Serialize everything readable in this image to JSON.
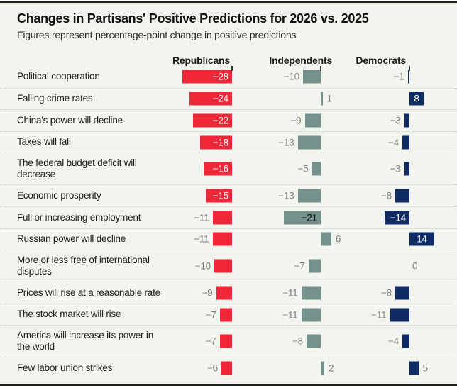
{
  "title": "Changes in Partisans' Positive Predictions for 2026 vs. 2025",
  "subtitle": "Figures represent percentage-point change in positive predictions",
  "columns": [
    {
      "key": "rep",
      "label": "Republicans",
      "color": "#f0283a",
      "inside_text_color": "#ffffff"
    },
    {
      "key": "ind",
      "label": "Independents",
      "color": "#75918b",
      "inside_text_color": "#161616"
    },
    {
      "key": "dem",
      "label": "Democrats",
      "color": "#0f2a64",
      "inside_text_color": "#ffffff"
    }
  ],
  "chart_data": {
    "type": "bar",
    "orientation": "horizontal",
    "title": "Changes in Partisans' Positive Predictions for 2026 vs. 2025",
    "subtitle": "Figures represent percentage-point change in positive predictions",
    "unit": "percentage-point change",
    "xlim": [
      -28,
      14
    ],
    "categories": [
      "Political cooperation",
      "Falling crime rates",
      "China's power will decline",
      "Taxes will fall",
      "The federal budget deficit will decrease",
      "Economic prosperity",
      "Full or increasing employment",
      "Russian power will decline",
      "More or less free of international disputes",
      "Prices will rise at a reasonable rate",
      "The stock market will rise",
      "America will increase its power in the world",
      "Few labor union strikes"
    ],
    "category_lines": [
      [
        "Political cooperation"
      ],
      [
        "Falling crime rates"
      ],
      [
        "China's power will decline"
      ],
      [
        "Taxes will fall"
      ],
      [
        "The federal budget deficit will",
        "decrease"
      ],
      [
        "Economic prosperity"
      ],
      [
        "Full or increasing employment"
      ],
      [
        "Russian power will decline"
      ],
      [
        "More or less free of international",
        "disputes"
      ],
      [
        "Prices will rise at a reasonable rate"
      ],
      [
        "The stock market will rise"
      ],
      [
        "America will increase its power in",
        "the world"
      ],
      [
        "Few labor union strikes"
      ]
    ],
    "series": [
      {
        "name": "Republicans",
        "values": [
          -28,
          -24,
          -22,
          -18,
          -16,
          -15,
          -11,
          -11,
          -10,
          -9,
          -7,
          -7,
          -6
        ]
      },
      {
        "name": "Independents",
        "values": [
          -10,
          1,
          -9,
          -13,
          -5,
          -13,
          -21,
          6,
          -7,
          -11,
          -11,
          -8,
          2
        ]
      },
      {
        "name": "Democrats",
        "values": [
          -1,
          8,
          -3,
          -4,
          -3,
          -8,
          -14,
          14,
          0,
          -8,
          -11,
          -4,
          5
        ]
      }
    ]
  },
  "colors": {
    "background": "#f2f5ee",
    "republican_red": "#f0283a",
    "independent_sage": "#75918b",
    "democrat_navy": "#0f2a64",
    "outside_value_gray": "#80807a",
    "border_dark": "#1f1f1f",
    "separator_dotted": "#c7ccc3"
  }
}
